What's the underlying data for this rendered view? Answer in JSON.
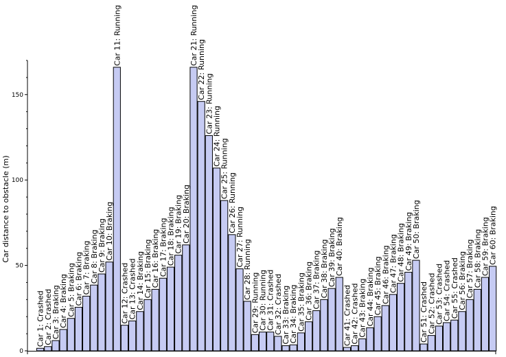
{
  "chart_data": {
    "type": "bar",
    "title": "",
    "xlabel": "",
    "ylabel": "Car distance to obstacle (m)",
    "ylim": [
      0,
      170
    ],
    "yticks": [
      0,
      50,
      100,
      150
    ],
    "grid": false,
    "legend": "none",
    "bar_color": "#c6cbf3",
    "edge_color": "#000000",
    "categories": [
      "Car 1: Crashed",
      "Car 2: Crashed",
      "Car 3: Braking",
      "Car 4: Braking",
      "Car 5: Braking",
      "Car 6: Braking",
      "Car 7: Braking",
      "Car 8: Braking",
      "Car 9: Braking",
      "Car 10: Braking",
      "Car 11: Running",
      "Car 12: Crashed",
      "Car 13: Crashed",
      "Car 14: Braking",
      "Car 15: Braking",
      "Car 16: Braking",
      "Car 17: Braking",
      "Car 18: Braking",
      "Car 19: Braking",
      "Car 20: Braking",
      "Car 21: Running",
      "Car 22: Running",
      "Car 23: Running",
      "Car 24: Running",
      "Car 25: Running",
      "Car 26: Running",
      "Car 27: Running",
      "Car 28: Running",
      "Car 29: Running",
      "Car 30: Running",
      "Car 31: Crashed",
      "Car 32: Crashed",
      "Car 33: Braking",
      "Car 34: Braking",
      "Car 35: Braking",
      "Car 36: Braking",
      "Car 37: Braking",
      "Car 38: Braking",
      "Car 39: Braking",
      "Car 40: Braking",
      "Car 41: Crashed",
      "Car 42: Crashed",
      "Car 43: Braking",
      "Car 44: Braking",
      "Car 45: Braking",
      "Car 46: Braking",
      "Car 47: Braking",
      "Car 48: Braking",
      "Car 49: Braking",
      "Car 50: Braking",
      "Car 51: Crashed",
      "Car 52: Crashed",
      "Car 53: Crashed",
      "Car 54: Crashed",
      "Car 55: Crashed",
      "Car 56: Braking",
      "Car 57: Braking",
      "Car 58: Braking",
      "Car 59: Braking",
      "Car 60: Braking"
    ],
    "values": [
      1.5,
      2.5,
      6,
      12.5,
      19,
      25.5,
      32,
      38.5,
      45,
      52,
      166,
      15,
      17.5,
      23,
      30,
      36,
      42.5,
      49,
      56,
      62,
      166,
      146,
      126,
      107,
      88,
      68,
      48,
      29,
      9.5,
      11,
      11,
      8.5,
      3,
      3.5,
      10.5,
      17,
      23.5,
      30,
      36.5,
      43,
      2,
      3,
      7,
      13.5,
      20,
      26.5,
      33,
      39.5,
      46,
      53,
      4,
      9,
      14.5,
      16.5,
      18,
      23,
      30,
      36,
      43,
      49.5
    ]
  }
}
